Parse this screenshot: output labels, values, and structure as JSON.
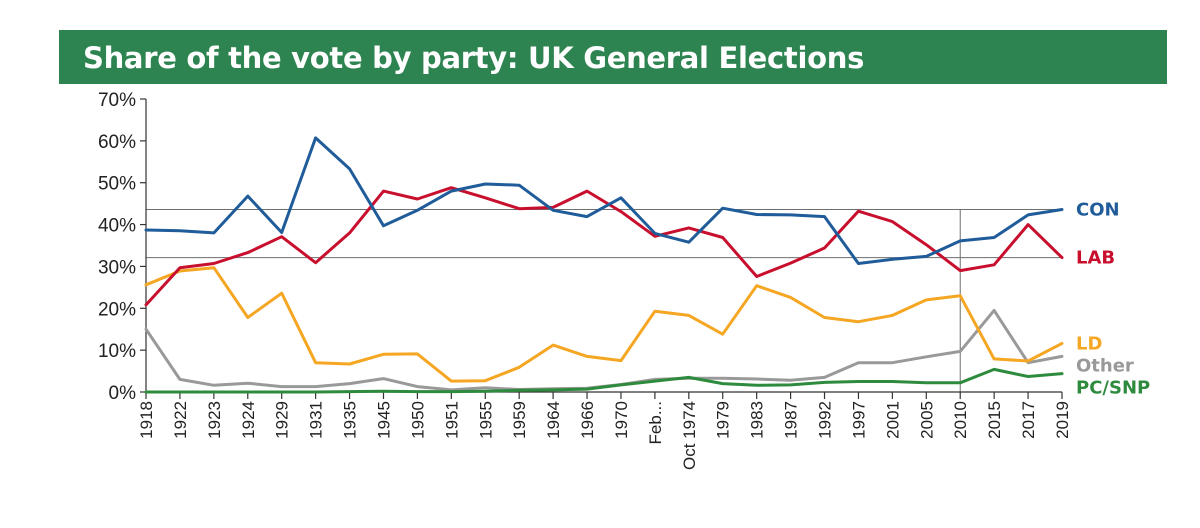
{
  "chart_data": {
    "type": "line",
    "title": "Share of the vote by party: UK General Elections",
    "xlabel": "",
    "ylabel": "",
    "ylim": [
      0,
      70
    ],
    "yticks": [
      0,
      10,
      20,
      30,
      40,
      50,
      60,
      70
    ],
    "ytick_labels": [
      "0%",
      "10%",
      "20%",
      "30%",
      "40%",
      "50%",
      "60%",
      "70%"
    ],
    "categories": [
      "1918",
      "1922",
      "1923",
      "1924",
      "1929",
      "1931",
      "1935",
      "1945",
      "1950",
      "1951",
      "1955",
      "1959",
      "1964",
      "1966",
      "1970",
      "Feb...",
      "Oct 1974",
      "1979",
      "1983",
      "1987",
      "1992",
      "1997",
      "2001",
      "2005",
      "2010",
      "2015",
      "2017",
      "2019"
    ],
    "reference_lines": [
      43.6,
      32.1
    ],
    "reference_vertical_category": "2010",
    "series": [
      {
        "name": "CON",
        "color": "#1f5c99",
        "values": [
          38.7,
          38.5,
          38.0,
          46.8,
          38.1,
          60.7,
          53.3,
          39.7,
          43.4,
          48.0,
          49.7,
          49.4,
          43.4,
          41.9,
          46.4,
          37.9,
          35.8,
          43.9,
          42.4,
          42.3,
          41.9,
          30.7,
          31.7,
          32.4,
          36.1,
          36.9,
          42.3,
          43.6
        ]
      },
      {
        "name": "LAB",
        "color": "#c8102e",
        "values": [
          20.8,
          29.7,
          30.7,
          33.3,
          37.1,
          30.9,
          38.0,
          48.0,
          46.1,
          48.8,
          46.4,
          43.8,
          44.1,
          48.0,
          43.1,
          37.2,
          39.2,
          36.9,
          27.6,
          30.8,
          34.4,
          43.2,
          40.7,
          35.2,
          29.0,
          30.4,
          40.0,
          32.1
        ]
      },
      {
        "name": "LD",
        "color": "#f5a623",
        "values": [
          25.6,
          28.9,
          29.7,
          17.8,
          23.6,
          7.0,
          6.7,
          9.0,
          9.1,
          2.6,
          2.7,
          5.9,
          11.2,
          8.5,
          7.5,
          19.3,
          18.3,
          13.8,
          25.4,
          22.6,
          17.8,
          16.8,
          18.3,
          22.0,
          23.0,
          7.9,
          7.4,
          11.6
        ]
      },
      {
        "name": "Other",
        "color": "#999999",
        "values": [
          15.0,
          3.0,
          1.6,
          2.1,
          1.3,
          1.3,
          2.0,
          3.2,
          1.3,
          0.5,
          1.0,
          0.6,
          0.8,
          0.9,
          1.8,
          3.0,
          3.3,
          3.3,
          3.1,
          2.8,
          3.5,
          7.0,
          7.0,
          8.4,
          9.7,
          19.5,
          7.0,
          8.5
        ]
      },
      {
        "name": "PC/SNP",
        "color": "#2e8b3e",
        "values": [
          0.0,
          0.0,
          0.0,
          0.0,
          0.0,
          0.0,
          0.1,
          0.2,
          0.1,
          0.1,
          0.2,
          0.4,
          0.5,
          0.7,
          1.7,
          2.6,
          3.5,
          2.0,
          1.6,
          1.7,
          2.3,
          2.5,
          2.5,
          2.2,
          2.2,
          5.4,
          3.7,
          4.4
        ]
      }
    ],
    "legend": "direct labels at right end of lines"
  }
}
